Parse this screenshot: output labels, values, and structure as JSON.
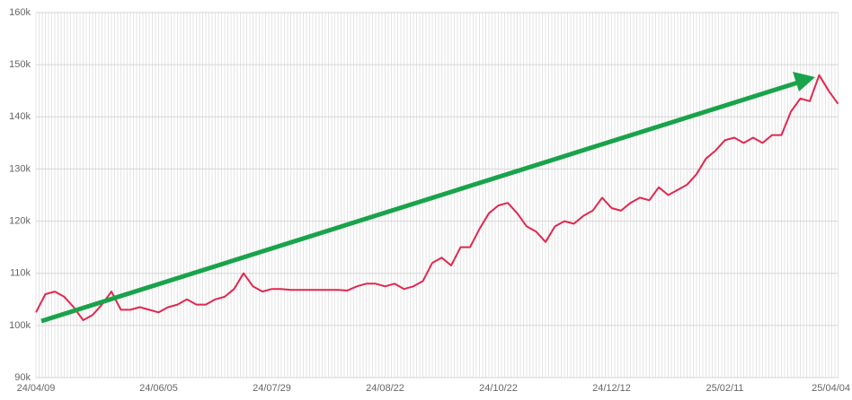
{
  "chart_data": {
    "type": "line",
    "categories": [
      "24/04/09",
      null,
      null,
      null,
      null,
      null,
      null,
      null,
      null,
      null,
      null,
      null,
      null,
      "24/06/05",
      null,
      null,
      null,
      null,
      null,
      null,
      null,
      null,
      null,
      null,
      null,
      "24/07/29",
      null,
      null,
      null,
      null,
      null,
      null,
      null,
      null,
      null,
      null,
      null,
      "24/08/22",
      null,
      null,
      null,
      null,
      null,
      null,
      null,
      null,
      null,
      null,
      null,
      "24/10/22",
      null,
      null,
      null,
      null,
      null,
      null,
      null,
      null,
      null,
      null,
      null,
      "24/12/12",
      null,
      null,
      null,
      null,
      null,
      null,
      null,
      null,
      null,
      null,
      null,
      "25/02/11",
      null,
      null,
      null,
      null,
      null,
      null,
      null,
      null,
      null,
      null,
      null,
      "25/04/04"
    ],
    "values": [
      102500,
      106000,
      106500,
      105500,
      103500,
      101000,
      102000,
      104000,
      106500,
      103000,
      103000,
      103500,
      103000,
      102500,
      103500,
      104000,
      105000,
      104000,
      104000,
      105000,
      105500,
      107000,
      110000,
      107500,
      106500,
      107000,
      107000,
      106800,
      106800,
      106800,
      106800,
      106800,
      106800,
      106700,
      107500,
      108000,
      108000,
      107500,
      108000,
      107000,
      107500,
      108500,
      112000,
      113000,
      111500,
      115000,
      115000,
      118500,
      121500,
      123000,
      123500,
      121500,
      119000,
      118000,
      116000,
      119000,
      120000,
      119500,
      121000,
      122000,
      124500,
      122500,
      122000,
      123500,
      124500,
      124000,
      126500,
      125000,
      126000,
      127000,
      129000,
      132000,
      133500,
      135500,
      136000,
      135000,
      136000,
      135000,
      136500,
      136500,
      141000,
      143500,
      143000,
      148000,
      145000,
      142500
    ],
    "color": "#e0284f",
    "ylim": [
      90000,
      160000
    ],
    "yticks": [
      {
        "value": 90000,
        "label": "90k"
      },
      {
        "value": 100000,
        "label": "100k"
      },
      {
        "value": 110000,
        "label": "110k"
      },
      {
        "value": 120000,
        "label": "120k"
      },
      {
        "value": 130000,
        "label": "130k"
      },
      {
        "value": 140000,
        "label": "140k"
      },
      {
        "value": 150000,
        "label": "150k"
      },
      {
        "value": 160000,
        "label": "160k"
      }
    ],
    "grid": true
  }
}
